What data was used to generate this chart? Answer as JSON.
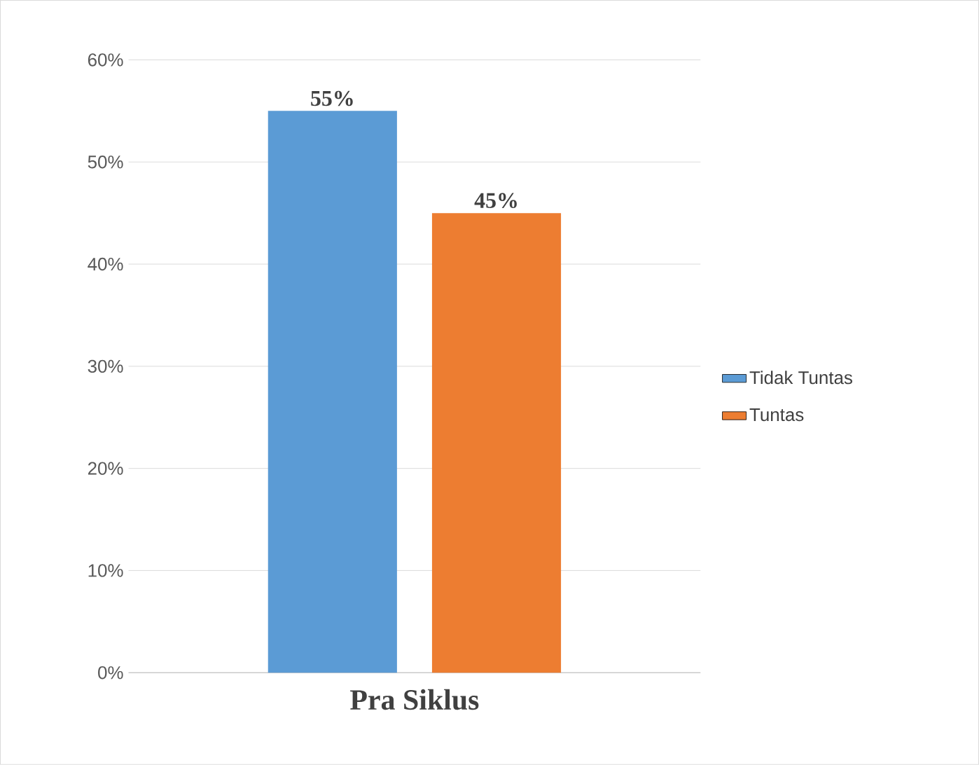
{
  "chart_data": {
    "type": "bar",
    "categories": [
      "Pra Siklus"
    ],
    "series": [
      {
        "name": "Tidak Tuntas",
        "color": "#5b9bd5",
        "values": [
          55
        ],
        "value_labels": [
          "55%"
        ]
      },
      {
        "name": "Tuntas",
        "color": "#ed7d31",
        "values": [
          45
        ],
        "value_labels": [
          "45%"
        ]
      }
    ],
    "ylim": [
      0,
      60
    ],
    "yticks": [
      {
        "value": 0,
        "label": "0%"
      },
      {
        "value": 10,
        "label": "10%"
      },
      {
        "value": 20,
        "label": "20%"
      },
      {
        "value": 30,
        "label": "30%"
      },
      {
        "value": 40,
        "label": "40%"
      },
      {
        "value": 50,
        "label": "50%"
      },
      {
        "value": 60,
        "label": "60%"
      }
    ],
    "grid": "y",
    "legend": "right"
  }
}
